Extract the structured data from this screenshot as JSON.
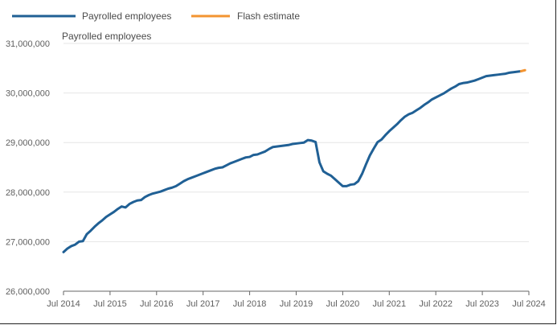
{
  "chart_data": {
    "type": "line",
    "title": "Payrolled employees",
    "xlabel": "",
    "ylabel": "",
    "ylim": [
      26000000,
      31000000
    ],
    "yticks": [
      26000000,
      27000000,
      28000000,
      29000000,
      30000000,
      31000000
    ],
    "ytick_labels": [
      "26,000,000",
      "27,000,000",
      "28,000,000",
      "29,000,000",
      "30,000,000",
      "31,000,000"
    ],
    "xlim": [
      2014.5,
      2024.5
    ],
    "xticks": [
      2014.5,
      2015.5,
      2016.5,
      2017.5,
      2018.5,
      2019.5,
      2020.5,
      2021.5,
      2022.5,
      2023.5,
      2024.5
    ],
    "xtick_labels": [
      "Jul 2014",
      "Jul 2015",
      "Jul 2016",
      "Jul 2017",
      "Jul 2018",
      "Jul 2019",
      "Jul 2020",
      "Jul 2021",
      "Jul 2022",
      "Jul 2023",
      "Jul 2024"
    ],
    "grid": true,
    "legend_position": "top-left",
    "series": [
      {
        "name": "Payrolled employees",
        "color": "#206095",
        "x": [
          2014.5,
          2014.583,
          2014.667,
          2014.75,
          2014.833,
          2014.917,
          2015.0,
          2015.083,
          2015.167,
          2015.25,
          2015.333,
          2015.417,
          2015.5,
          2015.583,
          2015.667,
          2015.75,
          2015.833,
          2015.917,
          2016.0,
          2016.083,
          2016.167,
          2016.25,
          2016.333,
          2016.417,
          2016.5,
          2016.583,
          2016.667,
          2016.75,
          2016.833,
          2016.917,
          2017.0,
          2017.083,
          2017.167,
          2017.25,
          2017.333,
          2017.417,
          2017.5,
          2017.583,
          2017.667,
          2017.75,
          2017.833,
          2017.917,
          2018.0,
          2018.083,
          2018.167,
          2018.25,
          2018.333,
          2018.417,
          2018.5,
          2018.583,
          2018.667,
          2018.75,
          2018.833,
          2018.917,
          2019.0,
          2019.083,
          2019.167,
          2019.25,
          2019.333,
          2019.417,
          2019.5,
          2019.583,
          2019.667,
          2019.75,
          2019.833,
          2019.917,
          2020.0,
          2020.083,
          2020.167,
          2020.25,
          2020.333,
          2020.417,
          2020.5,
          2020.583,
          2020.667,
          2020.75,
          2020.833,
          2020.917,
          2021.0,
          2021.083,
          2021.167,
          2021.25,
          2021.333,
          2021.417,
          2021.5,
          2021.583,
          2021.667,
          2021.75,
          2021.833,
          2021.917,
          2022.0,
          2022.083,
          2022.167,
          2022.25,
          2022.333,
          2022.417,
          2022.5,
          2022.583,
          2022.667,
          2022.75,
          2022.833,
          2022.917,
          2023.0,
          2023.083,
          2023.167,
          2023.25,
          2023.333,
          2023.417,
          2023.5,
          2023.583,
          2023.667,
          2023.75,
          2023.833,
          2023.917,
          2024.0,
          2024.083,
          2024.167,
          2024.25,
          2024.333
        ],
        "values": [
          26790000,
          26860000,
          26910000,
          26940000,
          27000000,
          27010000,
          27150000,
          27220000,
          27300000,
          27370000,
          27430000,
          27500000,
          27550000,
          27600000,
          27660000,
          27710000,
          27690000,
          27760000,
          27800000,
          27830000,
          27840000,
          27900000,
          27940000,
          27970000,
          27990000,
          28010000,
          28040000,
          28070000,
          28090000,
          28120000,
          28170000,
          28220000,
          28260000,
          28290000,
          28320000,
          28350000,
          28380000,
          28410000,
          28440000,
          28470000,
          28490000,
          28500000,
          28540000,
          28580000,
          28610000,
          28640000,
          28670000,
          28700000,
          28710000,
          28750000,
          28760000,
          28790000,
          28820000,
          28870000,
          28910000,
          28920000,
          28930000,
          28940000,
          28950000,
          28970000,
          28980000,
          28990000,
          29000000,
          29050000,
          29040000,
          29010000,
          28600000,
          28420000,
          28370000,
          28330000,
          28260000,
          28190000,
          28120000,
          28120000,
          28150000,
          28160000,
          28220000,
          28370000,
          28560000,
          28740000,
          28880000,
          29010000,
          29060000,
          29150000,
          29230000,
          29300000,
          29370000,
          29450000,
          29520000,
          29570000,
          29600000,
          29650000,
          29700000,
          29760000,
          29810000,
          29870000,
          29910000,
          29950000,
          29990000,
          30040000,
          30090000,
          30130000,
          30180000,
          30200000,
          30210000,
          30230000,
          30250000,
          30280000,
          30310000,
          30340000,
          30350000,
          30360000,
          30370000,
          30380000,
          30390000,
          30410000,
          30420000,
          30430000,
          30440000
        ]
      },
      {
        "name": "Flash estimate",
        "color": "#f39431",
        "x": [
          2024.333,
          2024.417
        ],
        "values": [
          30440000,
          30460000
        ]
      }
    ]
  }
}
